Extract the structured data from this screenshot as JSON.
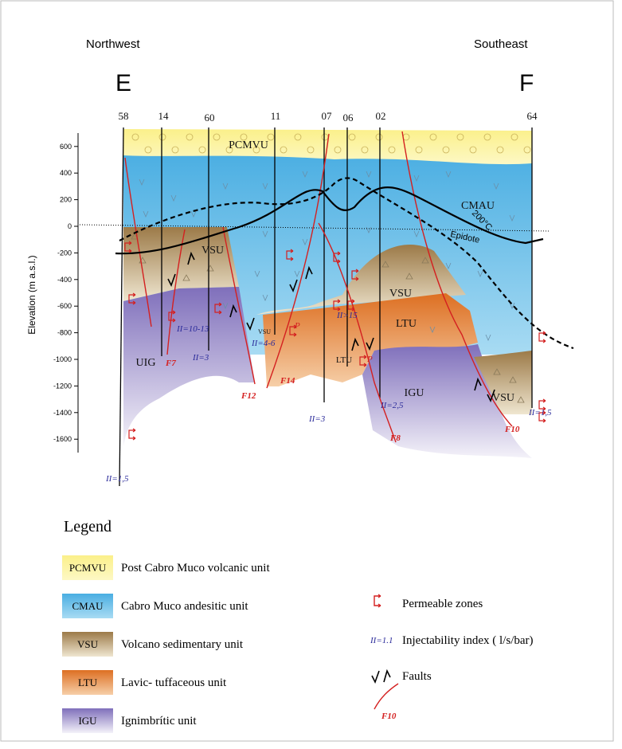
{
  "header": {
    "left": "Northwest",
    "right": "Southeast",
    "left_letter": "E",
    "right_letter": "F"
  },
  "wells": [
    "58",
    "14",
    "60",
    "11",
    "07",
    "06",
    "02",
    "64"
  ],
  "axis": {
    "label": "Elevation (m a.s.l.)",
    "ticks": [
      600,
      400,
      200,
      0,
      -200,
      -400,
      -600,
      -800,
      -1000,
      -1200,
      -1400,
      -1600
    ]
  },
  "section_units": [
    "PCMVU",
    "CMAU",
    "VSU",
    "VSU",
    "LTU",
    "LTU",
    "UIG",
    "IGU",
    "VSU",
    "VSU"
  ],
  "annotations": {
    "epidote": "Epidote",
    "isotherm": "200°C",
    "permeable_marks": [
      "P",
      "P"
    ]
  },
  "faults": [
    "F7",
    "F12",
    "F14",
    "F8",
    "F10"
  ],
  "injectability": [
    "II=1,5",
    "II=10-13",
    "II=3",
    "II=4-6",
    "II=3",
    "II>15",
    "II=2,5",
    "II=1,5"
  ],
  "legend": {
    "title": "Legend",
    "units": [
      {
        "code": "PCMVU",
        "name": "Post Cabro Muco volcanic unit"
      },
      {
        "code": "CMAU",
        "name": "Cabro Muco andesitic unit"
      },
      {
        "code": "VSU",
        "name": "Volcano sedimentary unit"
      },
      {
        "code": "LTU",
        "name": "Lavic- tuffaceous unit"
      },
      {
        "code": "IGU",
        "name": "Ignimbrític unit"
      }
    ],
    "symbols": {
      "permeable": "Permeable zones",
      "ii_code": "II=1.1",
      "ii_name": "Injectability index ( l/s/bar)",
      "faults": "Faults",
      "fault_code": "F10"
    }
  }
}
